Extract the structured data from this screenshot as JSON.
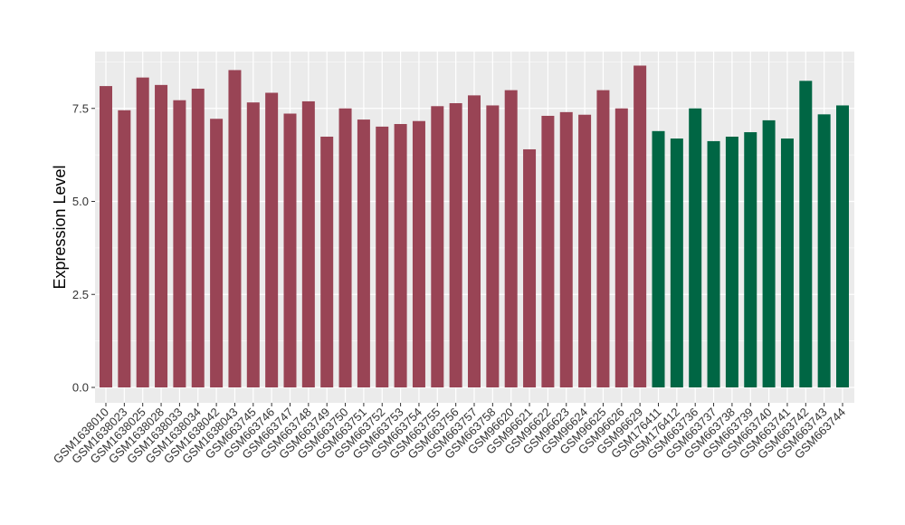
{
  "chart_data": {
    "type": "bar",
    "xlabel": "",
    "ylabel": "Expression Level",
    "ylim": [
      0,
      8.8
    ],
    "yticks": [
      "0.0",
      "2.5",
      "5.0",
      "7.5"
    ],
    "ytick_values": [
      0,
      2.5,
      5.0,
      7.5
    ],
    "grid": true,
    "legend": "none",
    "categories": [
      "GSM1638010",
      "GSM1638023",
      "GSM1638025",
      "GSM1638028",
      "GSM1638033",
      "GSM1638034",
      "GSM1638042",
      "GSM1638043",
      "GSM663745",
      "GSM663746",
      "GSM663747",
      "GSM663748",
      "GSM663749",
      "GSM663750",
      "GSM663751",
      "GSM663752",
      "GSM663753",
      "GSM663754",
      "GSM663755",
      "GSM663756",
      "GSM663757",
      "GSM663758",
      "GSM96620",
      "GSM96621",
      "GSM96622",
      "GSM96623",
      "GSM96624",
      "GSM96625",
      "GSM96626",
      "GSM96629",
      "GSM176411",
      "GSM176412",
      "GSM663736",
      "GSM663737",
      "GSM663738",
      "GSM663739",
      "GSM663740",
      "GSM663741",
      "GSM663742",
      "GSM663743",
      "GSM663744"
    ],
    "values": [
      8.1,
      7.45,
      8.33,
      8.13,
      7.72,
      8.03,
      7.22,
      8.53,
      7.66,
      7.92,
      7.36,
      7.69,
      6.74,
      7.5,
      7.2,
      7.01,
      7.08,
      7.16,
      7.56,
      7.64,
      7.85,
      7.58,
      7.99,
      6.4,
      7.3,
      7.4,
      7.33,
      7.99,
      7.5,
      8.65,
      6.89,
      6.69,
      7.5,
      6.62,
      6.74,
      6.86,
      7.18,
      6.69,
      8.24,
      7.34,
      7.58
    ],
    "groups": [
      0,
      0,
      0,
      0,
      0,
      0,
      0,
      0,
      0,
      0,
      0,
      0,
      0,
      0,
      0,
      0,
      0,
      0,
      0,
      0,
      0,
      0,
      0,
      0,
      0,
      0,
      0,
      0,
      0,
      0,
      1,
      1,
      1,
      1,
      1,
      1,
      1,
      1,
      1,
      1,
      1
    ],
    "group_colors": [
      "#994455",
      "#006644"
    ],
    "panel_color": "#ebebeb",
    "grid_color": "#ffffff"
  }
}
